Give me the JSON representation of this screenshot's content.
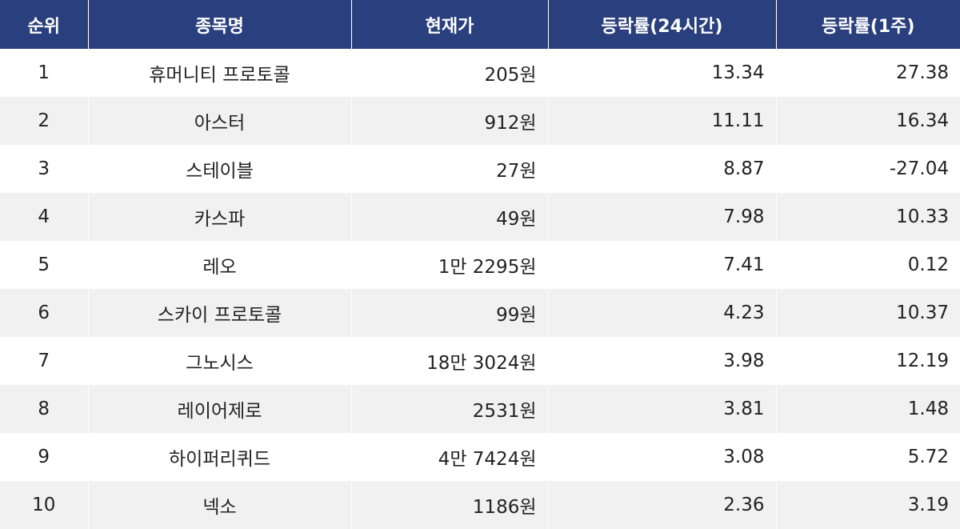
{
  "colors": {
    "header_bg": "#2a3f7d",
    "header_text": "#ffffff",
    "row_alt_bg": "#f1f1f1",
    "row_bg": "#ffffff"
  },
  "table": {
    "headers": [
      "순위",
      "종목명",
      "현재가",
      "등락률(24시간)",
      "등락률(1주)"
    ],
    "rows": [
      [
        "1",
        "휴머니티 프로토콜",
        "205원",
        "13.34",
        "27.38"
      ],
      [
        "2",
        "아스터",
        "912원",
        "11.11",
        "16.34"
      ],
      [
        "3",
        "스테이블",
        "27원",
        "8.87",
        "-27.04"
      ],
      [
        "4",
        "카스파",
        "49원",
        "7.98",
        "10.33"
      ],
      [
        "5",
        "레오",
        "1만 2295원",
        "7.41",
        "0.12"
      ],
      [
        "6",
        "스카이 프로토콜",
        "99원",
        "4.23",
        "10.37"
      ],
      [
        "7",
        "그노시스",
        "18만 3024원",
        "3.98",
        "12.19"
      ],
      [
        "8",
        "레이어제로",
        "2531원",
        "3.81",
        "1.48"
      ],
      [
        "9",
        "하이퍼리퀴드",
        "4만 7424원",
        "3.08",
        "5.72"
      ],
      [
        "10",
        "넥소",
        "1186원",
        "2.36",
        "3.19"
      ]
    ]
  }
}
